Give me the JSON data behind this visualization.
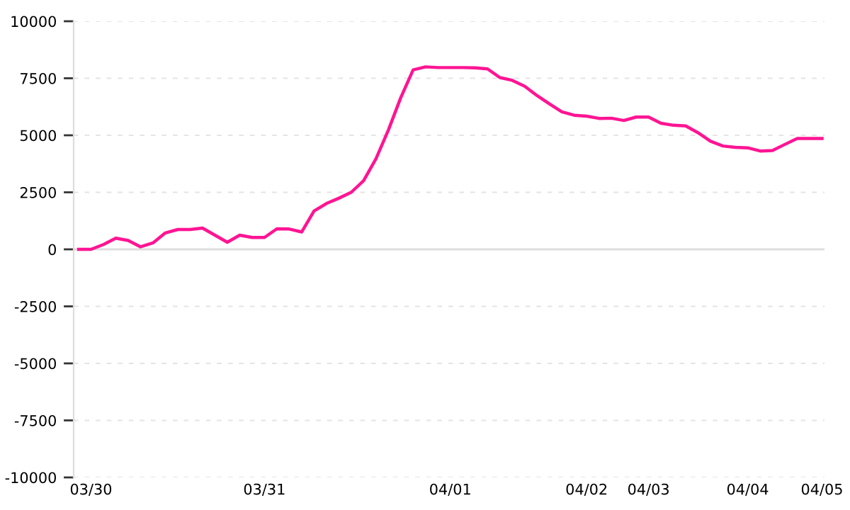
{
  "chart_data": {
    "type": "line",
    "categories": [
      null,
      "03/30",
      null,
      null,
      null,
      null,
      null,
      null,
      null,
      null,
      null,
      null,
      null,
      null,
      null,
      "03/31",
      null,
      null,
      null,
      null,
      null,
      null,
      null,
      null,
      null,
      null,
      null,
      null,
      null,
      null,
      "04/01",
      null,
      null,
      null,
      null,
      null,
      null,
      null,
      null,
      null,
      null,
      "04/02",
      null,
      null,
      null,
      null,
      "04/03",
      null,
      null,
      null,
      null,
      null,
      null,
      null,
      "04/04",
      null,
      null,
      null,
      null,
      null,
      "04/05"
    ],
    "series": [
      {
        "color": "#ff1493",
        "values": [
          0,
          0,
          210,
          490,
          390,
          110,
          280,
          720,
          870,
          870,
          930,
          620,
          310,
          620,
          520,
          520,
          900,
          890,
          760,
          1680,
          2010,
          2240,
          2500,
          3010,
          3970,
          5230,
          6650,
          7870,
          8000,
          7970,
          7970,
          7970,
          7960,
          7910,
          7530,
          7410,
          7150,
          6740,
          6380,
          6030,
          5880,
          5840,
          5740,
          5750,
          5650,
          5800,
          5800,
          5530,
          5440,
          5410,
          5110,
          4740,
          4530,
          4470,
          4450,
          4310,
          4330,
          4600,
          4860,
          4860,
          4860
        ]
      }
    ],
    "ylim": [
      -10000,
      10000
    ],
    "yticks": [
      -10000,
      -7500,
      -5000,
      -2500,
      0,
      2500,
      5000,
      7500,
      10000
    ],
    "grid": "y",
    "marker": "none",
    "line_style": "solid",
    "ref_lines": [
      {
        "axis": "y",
        "value": 0,
        "color": "#dddddd"
      }
    ]
  }
}
